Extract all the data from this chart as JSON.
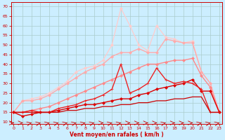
{
  "xlabel": "Vent moyen/en rafales ( km/h )",
  "bg_color": "#cceeff",
  "grid_color": "#aacccc",
  "x_ticks": [
    0,
    1,
    2,
    3,
    4,
    5,
    6,
    7,
    8,
    9,
    10,
    11,
    12,
    13,
    14,
    15,
    16,
    17,
    18,
    19,
    20,
    21,
    22,
    23
  ],
  "y_ticks": [
    10,
    15,
    20,
    25,
    30,
    35,
    40,
    45,
    50,
    55,
    60,
    65,
    70
  ],
  "ylim": [
    9,
    72
  ],
  "xlim": [
    -0.3,
    23.3
  ],
  "lines": [
    {
      "x": [
        0,
        1,
        2,
        3,
        4,
        5,
        6,
        7,
        8,
        9,
        10,
        11,
        12,
        13,
        14,
        15,
        16,
        17,
        18,
        19,
        20,
        21,
        22,
        23
      ],
      "y": [
        15,
        15,
        15,
        15,
        15,
        15,
        16,
        16,
        17,
        17,
        18,
        18,
        19,
        19,
        20,
        20,
        21,
        21,
        22,
        22,
        23,
        23,
        15,
        15
      ],
      "color": "#cc0000",
      "lw": 0.9,
      "marker": null,
      "ms": 0,
      "zorder": 6
    },
    {
      "x": [
        0,
        1,
        2,
        3,
        4,
        5,
        6,
        7,
        8,
        9,
        10,
        11,
        12,
        13,
        14,
        15,
        16,
        17,
        18,
        19,
        20,
        21,
        22,
        23
      ],
      "y": [
        15,
        13,
        14,
        15,
        15,
        16,
        17,
        18,
        19,
        19,
        20,
        21,
        22,
        22,
        24,
        25,
        27,
        28,
        29,
        30,
        32,
        26,
        26,
        15
      ],
      "color": "#dd0000",
      "lw": 1.0,
      "marker": "D",
      "ms": 2.0,
      "zorder": 5
    },
    {
      "x": [
        0,
        1,
        2,
        3,
        4,
        5,
        6,
        7,
        8,
        9,
        10,
        11,
        12,
        13,
        14,
        15,
        16,
        17,
        18,
        19,
        20,
        21,
        22,
        23
      ],
      "y": [
        15,
        15,
        16,
        15,
        15,
        17,
        18,
        19,
        21,
        22,
        24,
        27,
        40,
        25,
        27,
        30,
        38,
        32,
        30,
        31,
        30,
        27,
        15,
        15
      ],
      "color": "#ee2222",
      "lw": 1.0,
      "marker": "+",
      "ms": 3.5,
      "zorder": 5
    },
    {
      "x": [
        0,
        1,
        2,
        3,
        4,
        5,
        6,
        7,
        8,
        9,
        10,
        11,
        12,
        13,
        14,
        15,
        16,
        17,
        18,
        19,
        20,
        21,
        22,
        23
      ],
      "y": [
        15,
        15,
        16,
        17,
        18,
        20,
        22,
        24,
        26,
        28,
        30,
        32,
        34,
        36,
        38,
        40,
        40,
        41,
        42,
        42,
        43,
        34,
        28,
        15
      ],
      "color": "#ff8888",
      "lw": 1.0,
      "marker": "D",
      "ms": 2.0,
      "zorder": 4
    },
    {
      "x": [
        0,
        1,
        2,
        3,
        4,
        5,
        6,
        7,
        8,
        9,
        10,
        11,
        12,
        13,
        14,
        15,
        16,
        17,
        18,
        19,
        20,
        21,
        22,
        23
      ],
      "y": [
        15,
        21,
        21,
        22,
        24,
        27,
        30,
        33,
        36,
        38,
        40,
        44,
        46,
        46,
        48,
        46,
        46,
        53,
        52,
        51,
        51,
        36,
        30,
        15
      ],
      "color": "#ffaaaa",
      "lw": 1.0,
      "marker": "D",
      "ms": 2.0,
      "zorder": 3
    },
    {
      "x": [
        0,
        1,
        2,
        3,
        4,
        5,
        6,
        7,
        8,
        9,
        10,
        11,
        12,
        13,
        14,
        15,
        16,
        17,
        18,
        19,
        20,
        21,
        22,
        23
      ],
      "y": [
        15,
        21,
        22,
        23,
        25,
        28,
        31,
        36,
        38,
        39,
        42,
        50,
        69,
        60,
        50,
        47,
        60,
        54,
        53,
        51,
        52,
        36,
        30,
        15
      ],
      "color": "#ffcccc",
      "lw": 0.9,
      "marker": "D",
      "ms": 2.0,
      "zorder": 2
    }
  ],
  "font_color": "#cc0000",
  "arrow_color": "#cc0000",
  "arrow_angles": [
    0,
    0,
    45,
    45,
    45,
    45,
    45,
    45,
    45,
    45,
    0,
    45,
    45,
    0,
    0,
    0,
    0,
    45,
    0,
    0,
    0,
    45,
    45,
    45
  ]
}
